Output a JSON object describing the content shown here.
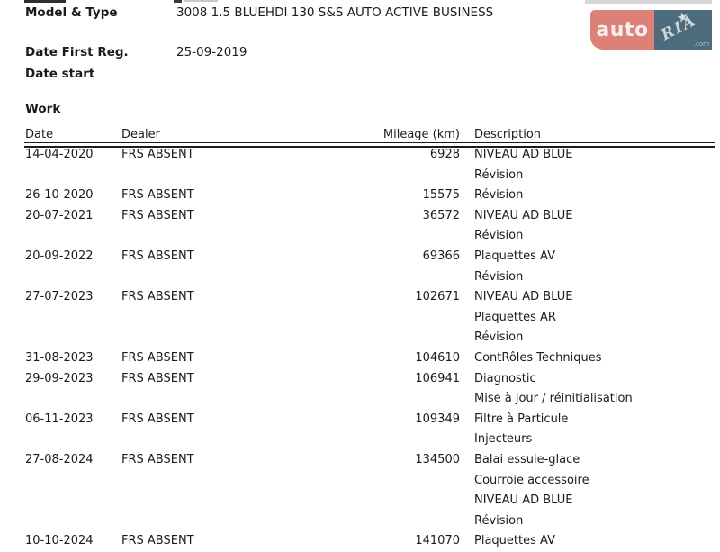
{
  "logo": {
    "left_text": "auto",
    "right_text": "RIA",
    "right_sub": ".com",
    "left_bg": "#dd8078",
    "right_bg": "#4c6c7d"
  },
  "info": {
    "fields": [
      {
        "label": "Model & Type",
        "value": "3008 1.5 BLUEHDI 130 S&S AUTO ACTIVE BUSINESS"
      },
      {
        "label": "Date First Reg.",
        "value": "25-09-2019"
      },
      {
        "label": "Date start",
        "value": ""
      }
    ]
  },
  "work": {
    "heading": "Work",
    "columns": [
      "Date",
      "Dealer",
      "Mileage (km)",
      "Description"
    ],
    "rows": [
      {
        "date": "14-04-2020",
        "dealer": "FRS ABSENT",
        "mileage": "6928",
        "descriptions": [
          "NIVEAU AD BLUE",
          "Révision"
        ]
      },
      {
        "date": "26-10-2020",
        "dealer": "FRS ABSENT",
        "mileage": "15575",
        "descriptions": [
          "Révision"
        ]
      },
      {
        "date": "20-07-2021",
        "dealer": "FRS ABSENT",
        "mileage": "36572",
        "descriptions": [
          "NIVEAU AD BLUE",
          "Révision"
        ]
      },
      {
        "date": "20-09-2022",
        "dealer": "FRS ABSENT",
        "mileage": "69366",
        "descriptions": [
          "Plaquettes AV",
          "Révision"
        ]
      },
      {
        "date": "27-07-2023",
        "dealer": "FRS ABSENT",
        "mileage": "102671",
        "descriptions": [
          "NIVEAU AD BLUE",
          "Plaquettes AR",
          "Révision"
        ]
      },
      {
        "date": "31-08-2023",
        "dealer": "FRS ABSENT",
        "mileage": "104610",
        "descriptions": [
          "ContRôles Techniques"
        ]
      },
      {
        "date": "29-09-2023",
        "dealer": "FRS ABSENT",
        "mileage": "106941",
        "descriptions": [
          "Diagnostic",
          "Mise à jour / réinitialisation"
        ]
      },
      {
        "date": "06-11-2023",
        "dealer": "FRS ABSENT",
        "mileage": "109349",
        "descriptions": [
          "Filtre à Particule",
          "Injecteurs"
        ]
      },
      {
        "date": "27-08-2024",
        "dealer": "FRS ABSENT",
        "mileage": "134500",
        "descriptions": [
          "Balai essuie-glace",
          "Courroie accessoire",
          "NIVEAU AD BLUE",
          "Révision"
        ]
      },
      {
        "date": "10-10-2024",
        "dealer": "FRS ABSENT",
        "mileage": "141070",
        "descriptions": [
          "Plaquettes AV"
        ]
      }
    ]
  }
}
